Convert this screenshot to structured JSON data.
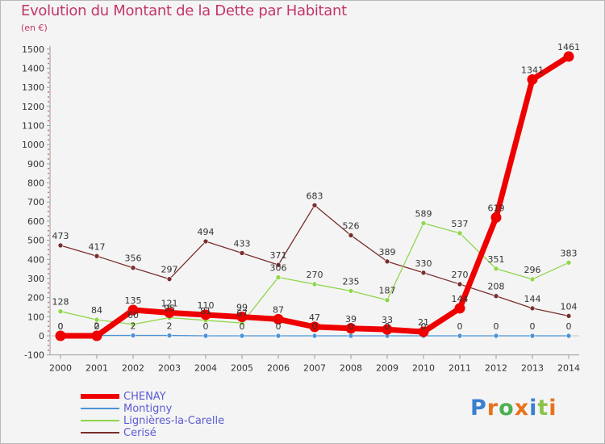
{
  "chart_data": {
    "type": "line",
    "title": "Evolution du Montant de la Dette par Habitant",
    "subtitle": "(en €)",
    "xlabel": "",
    "ylabel": "",
    "ylim": [
      -100,
      1500
    ],
    "yticks": [
      -100,
      0,
      100,
      200,
      300,
      400,
      500,
      600,
      700,
      800,
      900,
      1000,
      1100,
      1200,
      1300,
      1400,
      1500
    ],
    "x": [
      "2000",
      "2001",
      "2002",
      "2003",
      "2004",
      "2005",
      "2006",
      "2007",
      "2008",
      "2009",
      "2010",
      "2011",
      "2012",
      "2013",
      "2014"
    ],
    "grid": false,
    "legend_position": "bottom-left",
    "series": [
      {
        "name": "CHENAY",
        "color": "#ee0000",
        "values": [
          0,
          0,
          135,
          121,
          110,
          99,
          87,
          47,
          39,
          33,
          21,
          144,
          619,
          1341,
          1461
        ]
      },
      {
        "name": "Montigny",
        "color": "#4b93d6",
        "values": [
          0,
          2,
          2,
          2,
          0,
          0,
          0,
          0,
          0,
          0,
          0,
          0,
          0,
          0,
          0
        ]
      },
      {
        "name": "Lignières-la-Carelle",
        "color": "#8fd64b",
        "values": [
          128,
          84,
          60,
          95,
          81,
          67,
          306,
          270,
          235,
          187,
          589,
          537,
          351,
          296,
          383
        ]
      },
      {
        "name": "Cerisé",
        "color": "#7a2e2e",
        "values": [
          473,
          417,
          356,
          297,
          494,
          433,
          371,
          683,
          526,
          389,
          330,
          270,
          208,
          144,
          104
        ]
      }
    ]
  },
  "logo": {
    "letters": [
      "P",
      "r",
      "o",
      "x",
      "i",
      "t",
      "i"
    ],
    "colors": [
      "#3a7fd0",
      "#e8731c",
      "#4caf50",
      "#e8731c",
      "#3a7fd0",
      "#8bc34a",
      "#e8731c"
    ]
  }
}
